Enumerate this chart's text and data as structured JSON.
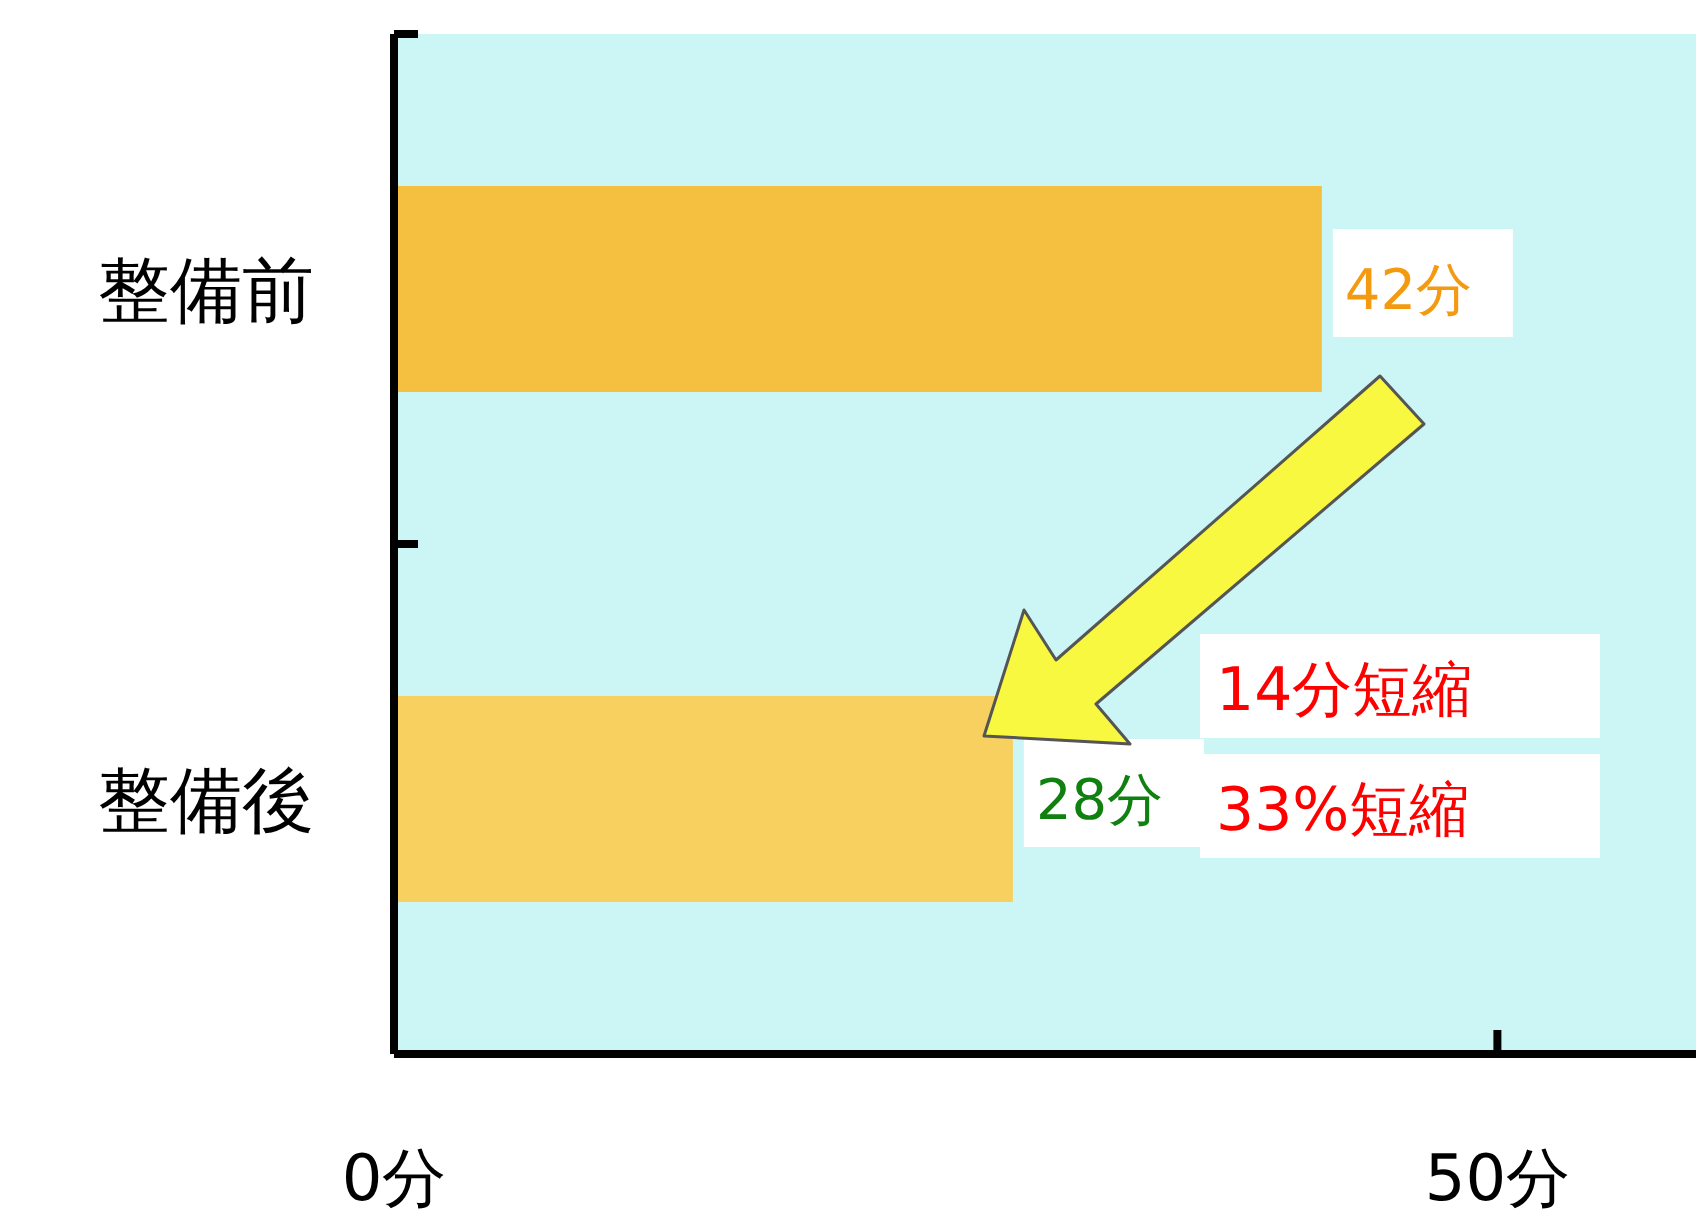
{
  "chart_data": {
    "type": "bar",
    "orientation": "horizontal",
    "categories": [
      "整備前",
      "整備後"
    ],
    "values": [
      42,
      28
    ],
    "value_labels": [
      "42分",
      "28分"
    ],
    "colors": [
      "#f5c040",
      "#f7d060"
    ],
    "xlim": [
      0,
      59
    ],
    "xticks": [
      {
        "value": 0,
        "label": "0分"
      },
      {
        "value": 50,
        "label": "50分"
      }
    ],
    "annotations": [
      "14分短縮",
      "33%短縮"
    ],
    "grid": false
  }
}
